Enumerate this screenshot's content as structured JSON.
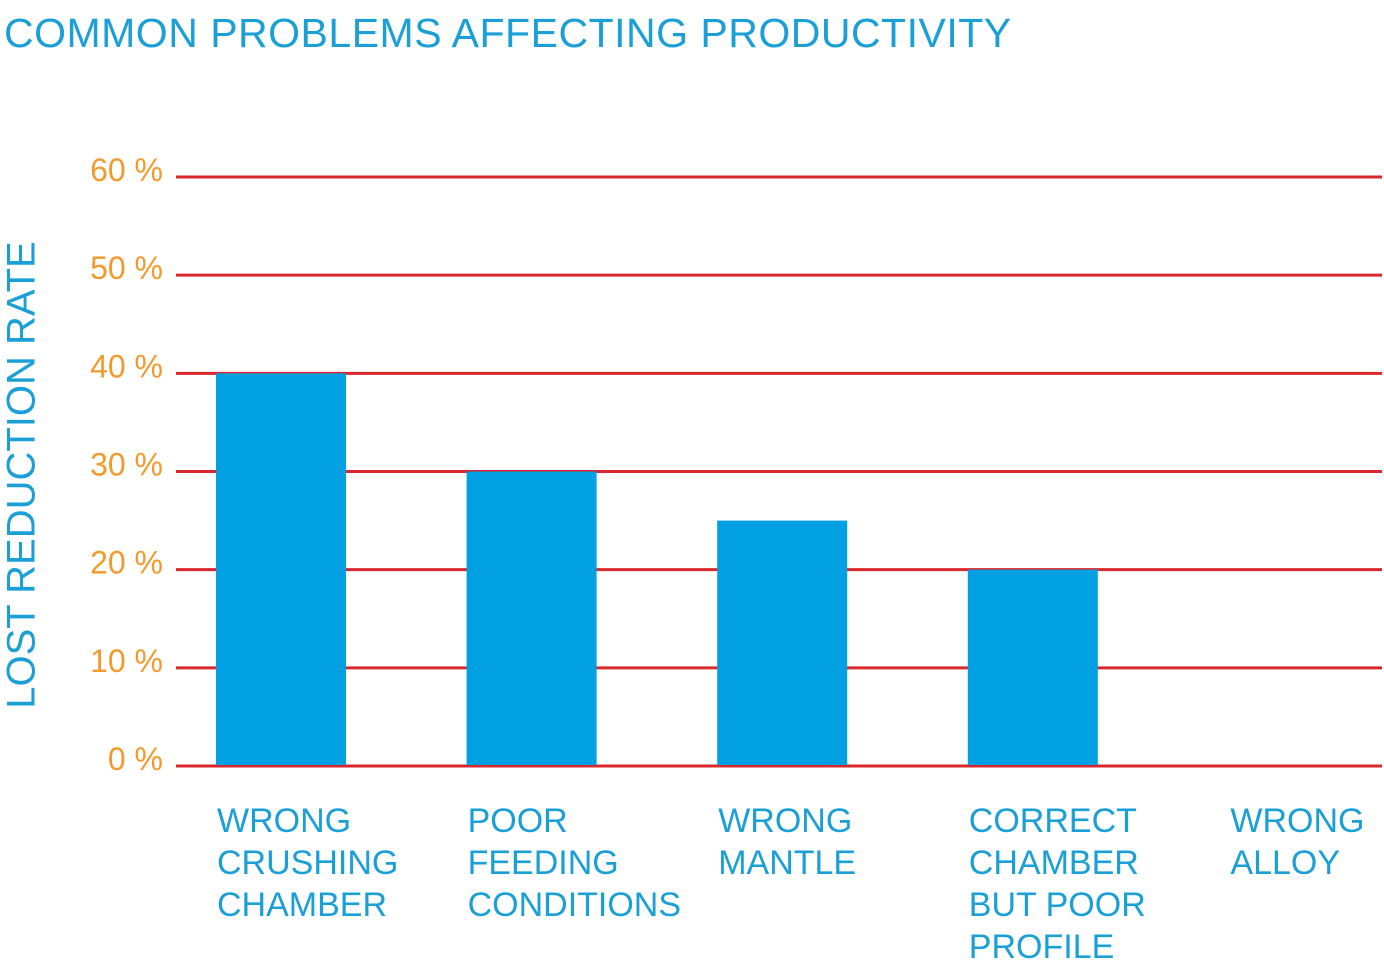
{
  "chart_data": {
    "type": "bar",
    "title": "COMMON PROBLEMS AFFECTING PRODUCTIVITY",
    "xlabel": "",
    "ylabel": "LOST REDUCTION RATE",
    "categories": [
      "WRONG\nCRUSHING\nCHAMBER",
      "POOR\nFEEDING\nCONDITIONS",
      "WRONG\nMANTLE",
      "CORRECT\nCHAMBER\nBUT POOR\nPROFILE",
      "WRONG\nALLOY"
    ],
    "values": [
      40,
      30,
      25,
      20,
      0
    ],
    "ylim": [
      0,
      60
    ],
    "yticks": [
      0,
      10,
      20,
      30,
      40,
      50,
      60
    ],
    "ytick_labels": [
      "0 %",
      "10 %",
      "20 %",
      "30 %",
      "40 %",
      "50 %",
      "60 %"
    ],
    "grid": true,
    "colors": {
      "bar": "#00a0e3",
      "grid": "#d9272e",
      "tick": "#f39a2d",
      "text": "#1a9fd6"
    }
  }
}
